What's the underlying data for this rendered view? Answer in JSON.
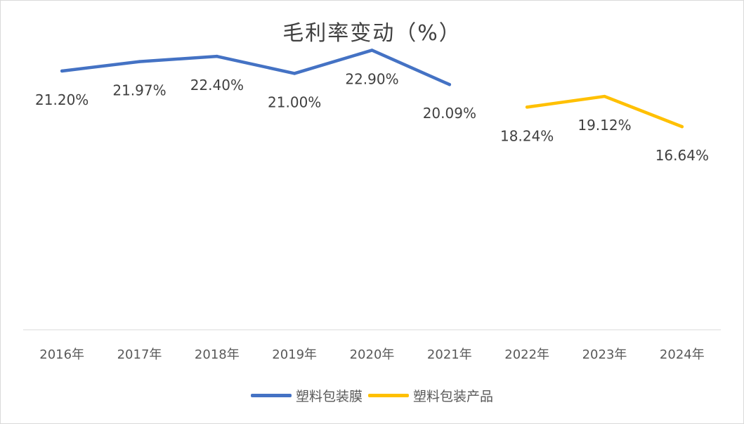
{
  "chart_data": {
    "type": "line",
    "title": "毛利率变动（%）",
    "categories": [
      "2016年",
      "2017年",
      "2018年",
      "2019年",
      "2020年",
      "2021年",
      "2022年",
      "2023年",
      "2024年"
    ],
    "series": [
      {
        "name": "塑料包装膜",
        "color": "#4472c4",
        "values": [
          21.2,
          21.97,
          22.4,
          21.0,
          22.9,
          20.09,
          null,
          null,
          null
        ],
        "labels": [
          "21.20%",
          "21.97%",
          "22.40%",
          "21.00%",
          "22.90%",
          "20.09%",
          null,
          null,
          null
        ]
      },
      {
        "name": "塑料包装产品",
        "color": "#ffc000",
        "values": [
          null,
          null,
          null,
          null,
          null,
          null,
          18.24,
          19.12,
          16.64
        ],
        "labels": [
          null,
          null,
          null,
          null,
          null,
          null,
          "18.24%",
          "19.12%",
          "16.64%"
        ]
      }
    ],
    "xlabel": "",
    "ylabel": "",
    "ylim": [
      0,
      25
    ],
    "grid": false,
    "legend_position": "bottom"
  }
}
